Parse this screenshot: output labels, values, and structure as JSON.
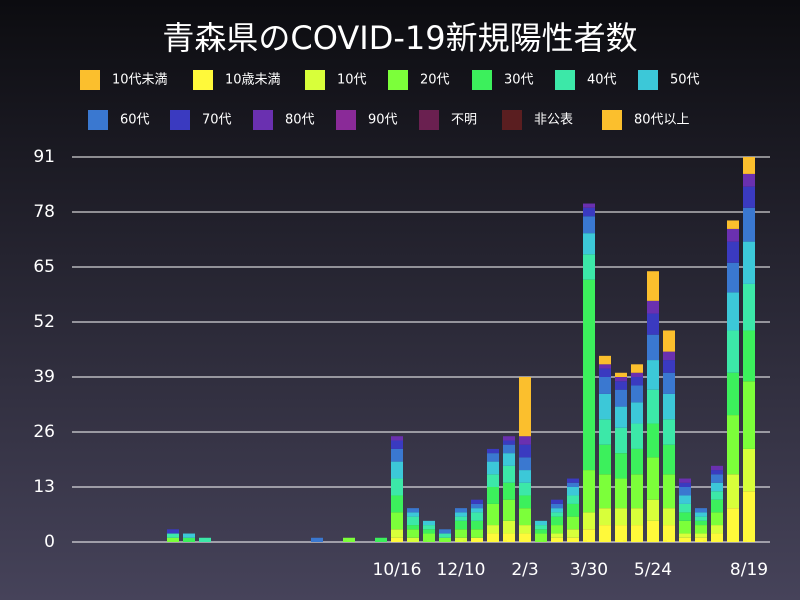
{
  "chart_data": {
    "type": "stacked_bar",
    "title": "青森県のCOVID-19新規陽性者数",
    "categories": [
      null,
      null,
      null,
      null,
      null,
      null,
      null,
      null,
      null,
      null,
      null,
      null,
      null,
      null,
      null,
      null,
      null,
      null,
      null,
      null,
      "10/16",
      null,
      null,
      null,
      "12/10",
      null,
      null,
      null,
      "2/3",
      null,
      null,
      null,
      "3/30",
      null,
      null,
      null,
      "5/24",
      null,
      null,
      null,
      null,
      null,
      "8/19"
    ],
    "ylim": [
      0,
      91
    ],
    "yticks": [
      0,
      13,
      26,
      39,
      52,
      65,
      78,
      91
    ],
    "grid": true,
    "series": [
      {
        "name": "10代未満",
        "color": "#fbbf2d",
        "values": [
          0,
          0,
          0,
          0,
          0,
          0,
          0,
          0,
          0,
          0,
          0,
          0,
          0,
          0,
          0,
          0,
          0,
          0,
          0,
          0,
          0,
          0,
          0,
          0,
          0,
          0,
          0,
          0,
          0,
          0,
          0,
          0,
          0,
          0,
          0,
          0,
          0,
          0,
          0,
          0,
          0,
          0,
          0
        ]
      },
      {
        "name": "10歳未満",
        "color": "#fff93a",
        "values": [
          0,
          0,
          0,
          0,
          0,
          0,
          0,
          0,
          0,
          0,
          0,
          0,
          0,
          0,
          0,
          0,
          0,
          0,
          0,
          0,
          1,
          0,
          0,
          0,
          0,
          1,
          2,
          2,
          2,
          0,
          1,
          1,
          3,
          4,
          4,
          4,
          5,
          4,
          1,
          1,
          2,
          8,
          12
        ]
      },
      {
        "name": "10代",
        "color": "#d8ff3a",
        "values": [
          0,
          0,
          0,
          0,
          0,
          0,
          0,
          0,
          0,
          0,
          0,
          0,
          0,
          0,
          0,
          0,
          0,
          0,
          0,
          0,
          2,
          1,
          0,
          0,
          1,
          0,
          2,
          3,
          2,
          0,
          1,
          2,
          4,
          4,
          4,
          4,
          5,
          4,
          1,
          1,
          2,
          8,
          10
        ]
      },
      {
        "name": "20代",
        "color": "#7cff3a",
        "values": [
          0,
          0,
          0,
          0,
          0,
          0,
          1,
          0,
          0,
          0,
          0,
          0,
          0,
          0,
          0,
          0,
          0,
          1,
          0,
          0,
          4,
          2,
          2,
          1,
          2,
          2,
          5,
          5,
          4,
          2,
          2,
          3,
          10,
          8,
          7,
          8,
          10,
          8,
          3,
          2,
          3,
          14,
          16
        ]
      },
      {
        "name": "30代",
        "color": "#3cf05c",
        "values": [
          0,
          0,
          0,
          0,
          0,
          0,
          0,
          1,
          0,
          0,
          0,
          0,
          0,
          0,
          0,
          0,
          0,
          0,
          0,
          1,
          4,
          1,
          1,
          0,
          2,
          2,
          4,
          4,
          3,
          1,
          2,
          3,
          45,
          7,
          6,
          6,
          8,
          7,
          2,
          1,
          3,
          10,
          12
        ]
      },
      {
        "name": "40代",
        "color": "#3ce8a8",
        "values": [
          0,
          0,
          0,
          0,
          0,
          0,
          1,
          0,
          1,
          0,
          0,
          0,
          0,
          0,
          0,
          0,
          0,
          0,
          0,
          0,
          4,
          2,
          1,
          1,
          1,
          2,
          3,
          4,
          3,
          1,
          1,
          2,
          6,
          6,
          6,
          6,
          8,
          6,
          2,
          1,
          2,
          10,
          11
        ]
      },
      {
        "name": "50代",
        "color": "#3cc8d8",
        "values": [
          0,
          0,
          0,
          0,
          0,
          0,
          0,
          1,
          0,
          0,
          0,
          0,
          0,
          0,
          0,
          0,
          0,
          0,
          0,
          0,
          4,
          1,
          1,
          0,
          1,
          1,
          3,
          3,
          3,
          1,
          1,
          2,
          5,
          6,
          5,
          5,
          7,
          6,
          2,
          1,
          2,
          9,
          10
        ]
      },
      {
        "name": "60代",
        "color": "#3a78d0",
        "values": [
          0,
          0,
          0,
          0,
          0,
          0,
          0,
          0,
          0,
          0,
          0,
          0,
          0,
          0,
          0,
          1,
          0,
          0,
          0,
          0,
          3,
          1,
          0,
          1,
          1,
          1,
          2,
          2,
          3,
          0,
          1,
          1,
          4,
          4,
          4,
          4,
          6,
          5,
          2,
          1,
          2,
          7,
          8
        ]
      },
      {
        "name": "70代",
        "color": "#3a3ac0",
        "values": [
          0,
          0,
          0,
          0,
          0,
          0,
          1,
          0,
          0,
          0,
          0,
          0,
          0,
          0,
          0,
          0,
          0,
          0,
          0,
          0,
          2,
          0,
          0,
          0,
          0,
          1,
          1,
          1,
          3,
          0,
          1,
          1,
          2,
          2,
          2,
          2,
          5,
          3,
          1,
          0,
          1,
          5,
          5
        ]
      },
      {
        "name": "80代",
        "color": "#6a30b0",
        "values": [
          0,
          0,
          0,
          0,
          0,
          0,
          0,
          0,
          0,
          0,
          0,
          0,
          0,
          0,
          0,
          0,
          0,
          0,
          0,
          0,
          1,
          0,
          0,
          0,
          0,
          0,
          0,
          1,
          2,
          0,
          0,
          0,
          1,
          1,
          1,
          1,
          3,
          2,
          1,
          0,
          1,
          3,
          3
        ]
      },
      {
        "name": "90代",
        "color": "#8a2a98",
        "values": [
          0,
          0,
          0,
          0,
          0,
          0,
          0,
          0,
          0,
          0,
          0,
          0,
          0,
          0,
          0,
          0,
          0,
          0,
          0,
          0,
          0,
          0,
          0,
          0,
          0,
          0,
          0,
          0,
          0,
          0,
          0,
          0,
          0,
          0,
          0,
          0,
          0,
          0,
          0,
          0,
          0,
          0,
          0
        ]
      },
      {
        "name": "不明",
        "color": "#6a2050",
        "values": [
          0,
          0,
          0,
          0,
          0,
          0,
          0,
          0,
          0,
          0,
          0,
          0,
          0,
          0,
          0,
          0,
          0,
          0,
          0,
          0,
          0,
          0,
          0,
          0,
          0,
          0,
          0,
          0,
          0,
          0,
          0,
          0,
          0,
          0,
          0,
          0,
          0,
          0,
          0,
          0,
          0,
          0,
          0
        ]
      },
      {
        "name": "非公表",
        "color": "#5a1e20",
        "values": [
          0,
          0,
          0,
          0,
          0,
          0,
          0,
          0,
          0,
          0,
          0,
          0,
          0,
          0,
          0,
          0,
          0,
          0,
          0,
          0,
          0,
          0,
          0,
          0,
          0,
          0,
          0,
          0,
          0,
          0,
          0,
          0,
          0,
          0,
          0,
          0,
          0,
          0,
          0,
          0,
          0,
          0,
          0
        ]
      },
      {
        "name": "80代以上",
        "color": "#fbbf2d",
        "values": [
          0,
          0,
          0,
          0,
          0,
          0,
          0,
          0,
          0,
          0,
          0,
          0,
          0,
          0,
          0,
          0,
          0,
          0,
          0,
          0,
          0,
          0,
          0,
          0,
          0,
          0,
          0,
          0,
          14,
          0,
          0,
          0,
          0,
          2,
          1,
          2,
          7,
          5,
          0,
          0,
          0,
          2,
          4
        ]
      }
    ]
  }
}
